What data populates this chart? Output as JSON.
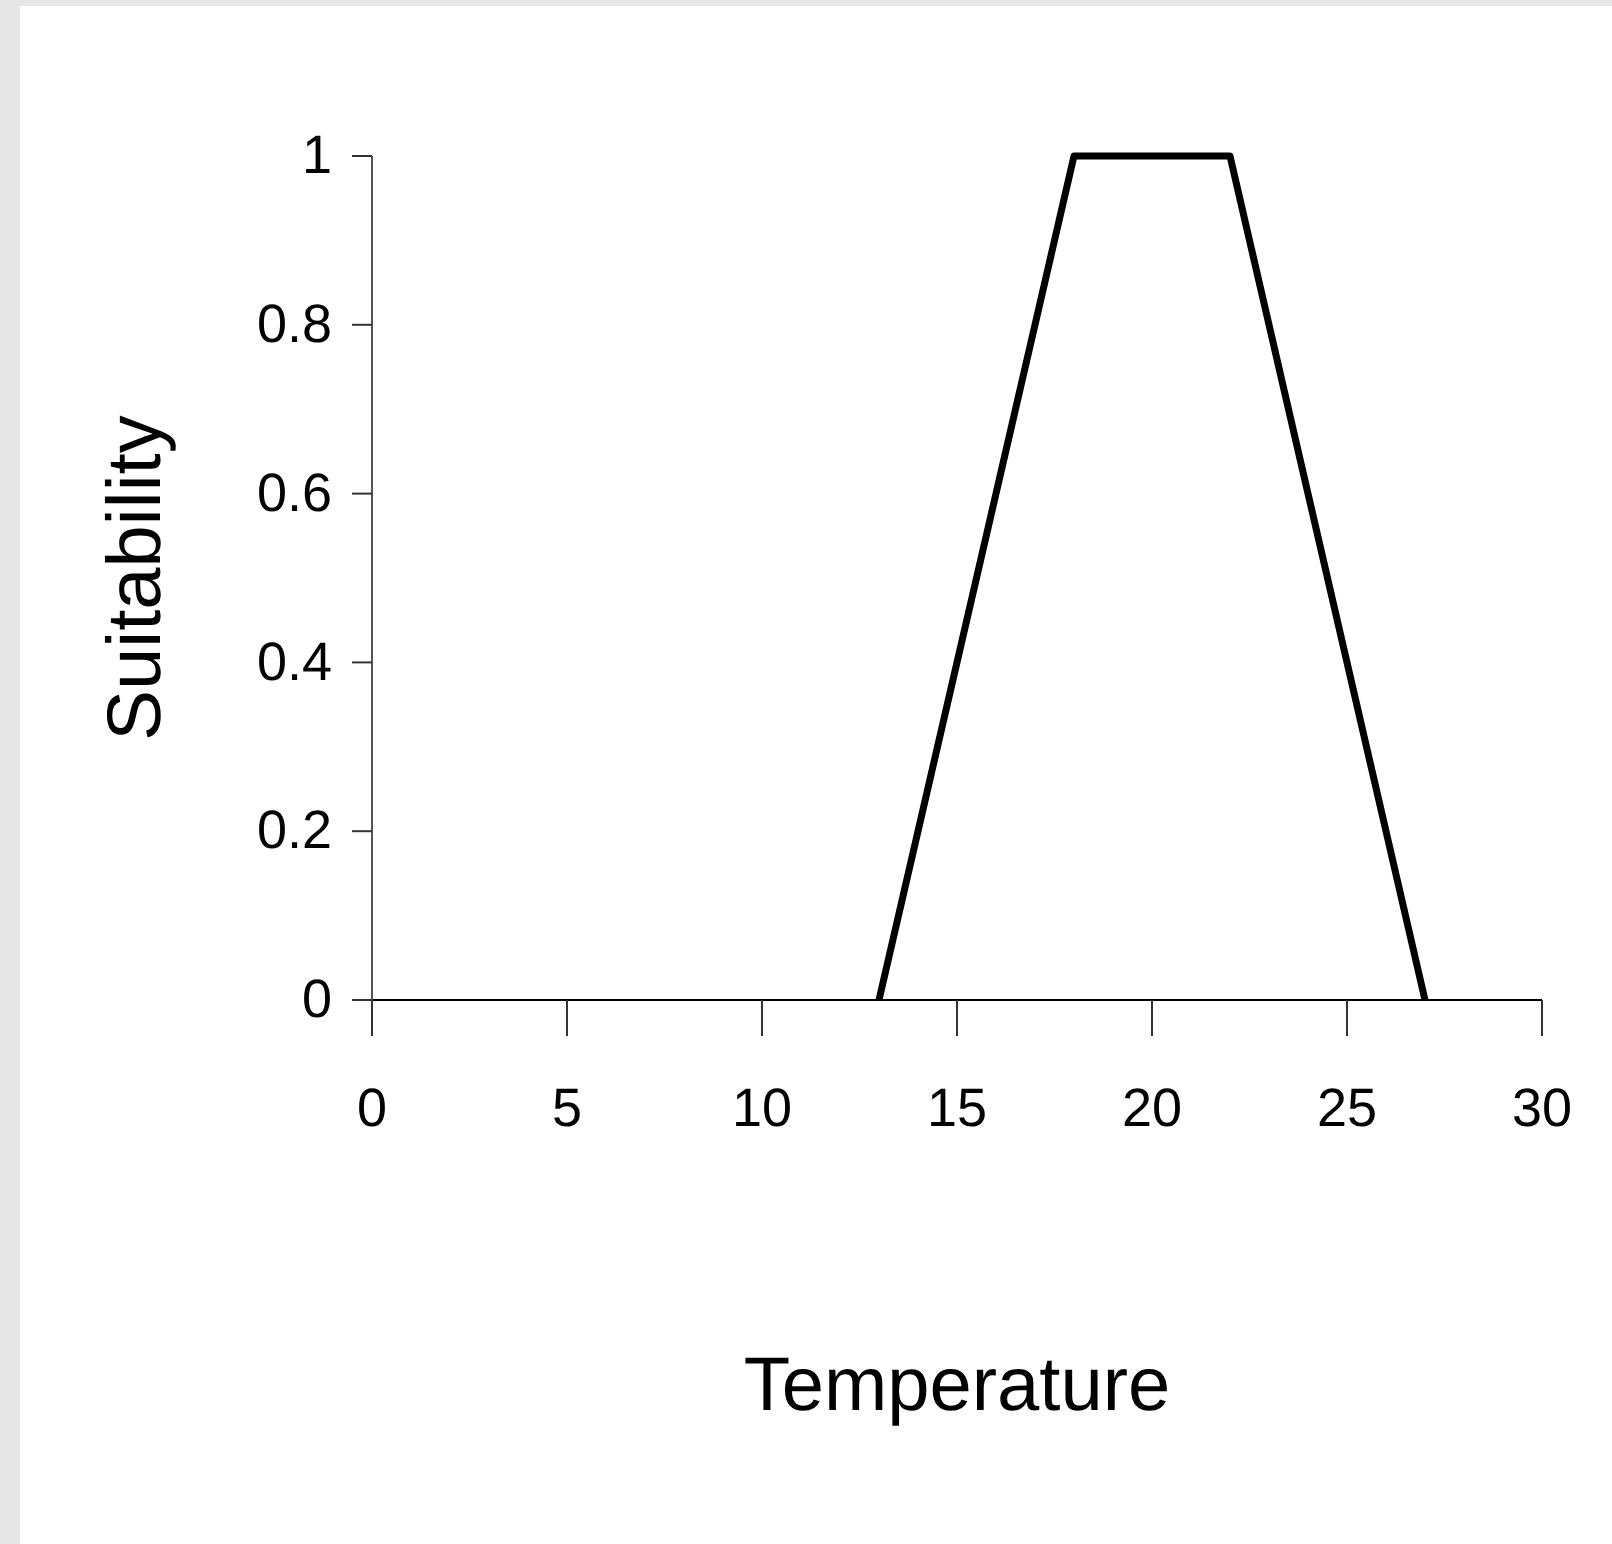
{
  "chart_data": {
    "type": "line",
    "xlabel": "Temperature",
    "ylabel": "Suitability",
    "x": [
      13,
      18,
      22,
      27
    ],
    "series": [
      {
        "color": "#000000",
        "values": [
          0,
          1,
          1,
          0
        ]
      }
    ],
    "xlim": [
      0,
      30
    ],
    "xticks": [
      0,
      5,
      10,
      15,
      20,
      25,
      30
    ],
    "ylim": [
      0,
      1
    ],
    "yticks": [
      0,
      0.2,
      0.4,
      0.6,
      0.8,
      1
    ],
    "grid": false,
    "marker": "none",
    "line_style": "solid"
  }
}
